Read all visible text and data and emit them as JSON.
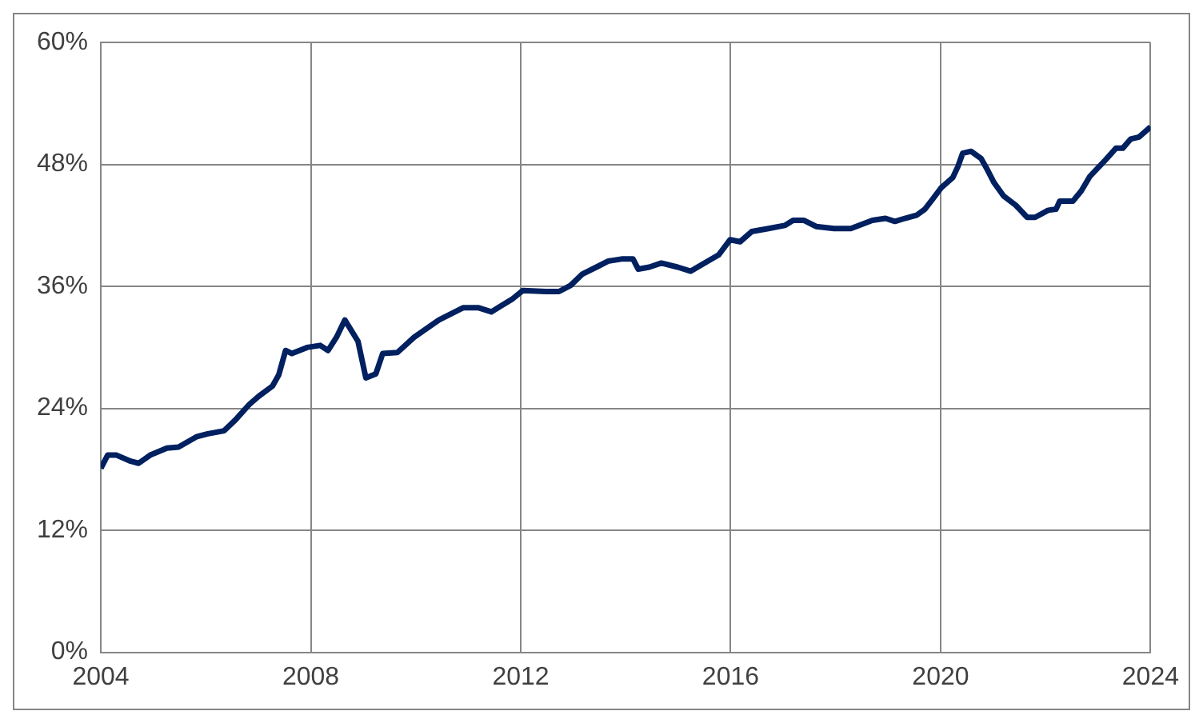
{
  "chart_data": {
    "type": "line",
    "x": [
      2004.0,
      2004.13,
      2004.3,
      2004.57,
      2004.72,
      2004.94,
      2005.26,
      2005.48,
      2005.82,
      2006.04,
      2006.35,
      2006.57,
      2006.83,
      2007.01,
      2007.27,
      2007.39,
      2007.52,
      2007.64,
      2007.93,
      2008.18,
      2008.33,
      2008.49,
      2008.65,
      2008.9,
      2009.05,
      2009.24,
      2009.37,
      2009.65,
      2009.97,
      2010.44,
      2010.9,
      2011.2,
      2011.44,
      2011.6,
      2011.85,
      2012.04,
      2012.48,
      2012.73,
      2012.95,
      2013.17,
      2013.48,
      2013.67,
      2013.92,
      2014.14,
      2014.24,
      2014.45,
      2014.68,
      2014.99,
      2015.24,
      2015.5,
      2015.77,
      2015.99,
      2016.18,
      2016.4,
      2016.72,
      2017.03,
      2017.19,
      2017.4,
      2017.63,
      2017.97,
      2018.29,
      2018.44,
      2018.7,
      2018.95,
      2019.13,
      2019.32,
      2019.54,
      2019.7,
      2019.85,
      2020.01,
      2020.23,
      2020.33,
      2020.42,
      2020.58,
      2020.77,
      2020.89,
      2021.02,
      2021.2,
      2021.43,
      2021.65,
      2021.8,
      2022.05,
      2022.2,
      2022.27,
      2022.52,
      2022.68,
      2022.84,
      2023.15,
      2023.34,
      2023.47,
      2023.62,
      2023.78,
      2024.0
    ],
    "series": [
      {
        "color": "#002060",
        "values": [
          18.1,
          19.4,
          19.4,
          18.8,
          18.6,
          19.4,
          20.1,
          20.2,
          21.2,
          21.5,
          21.8,
          22.9,
          24.4,
          25.2,
          26.2,
          27.3,
          29.7,
          29.4,
          30.0,
          30.2,
          29.7,
          31.0,
          32.7,
          30.6,
          27.0,
          27.4,
          29.4,
          29.5,
          31.0,
          32.7,
          33.9,
          33.9,
          33.5,
          34.0,
          34.8,
          35.6,
          35.5,
          35.5,
          36.1,
          37.2,
          38.0,
          38.5,
          38.7,
          38.7,
          37.7,
          37.9,
          38.3,
          37.9,
          37.5,
          38.3,
          39.1,
          40.6,
          40.4,
          41.4,
          41.7,
          42.0,
          42.5,
          42.5,
          41.9,
          41.7,
          41.7,
          42.0,
          42.5,
          42.7,
          42.4,
          42.7,
          43.0,
          43.6,
          44.6,
          45.7,
          46.7,
          47.8,
          49.1,
          49.3,
          48.6,
          47.5,
          46.2,
          44.9,
          44.0,
          42.8,
          42.8,
          43.5,
          43.6,
          44.4,
          44.4,
          45.4,
          46.8,
          48.5,
          49.6,
          49.6,
          50.5,
          50.7,
          51.7
        ]
      }
    ],
    "xlim": [
      2004,
      2024
    ],
    "xticks": [
      2004,
      2008,
      2012,
      2016,
      2020,
      2024
    ],
    "ylim": [
      0,
      60
    ],
    "yticks": [
      {
        "value": 0,
        "label": "0%"
      },
      {
        "value": 12,
        "label": "12%"
      },
      {
        "value": 24,
        "label": "24%"
      },
      {
        "value": 36,
        "label": "36%"
      },
      {
        "value": 48,
        "label": "48%"
      },
      {
        "value": 60,
        "label": "60%"
      }
    ],
    "grid": true,
    "legend": false,
    "marker": "none",
    "line_style": "solid"
  }
}
